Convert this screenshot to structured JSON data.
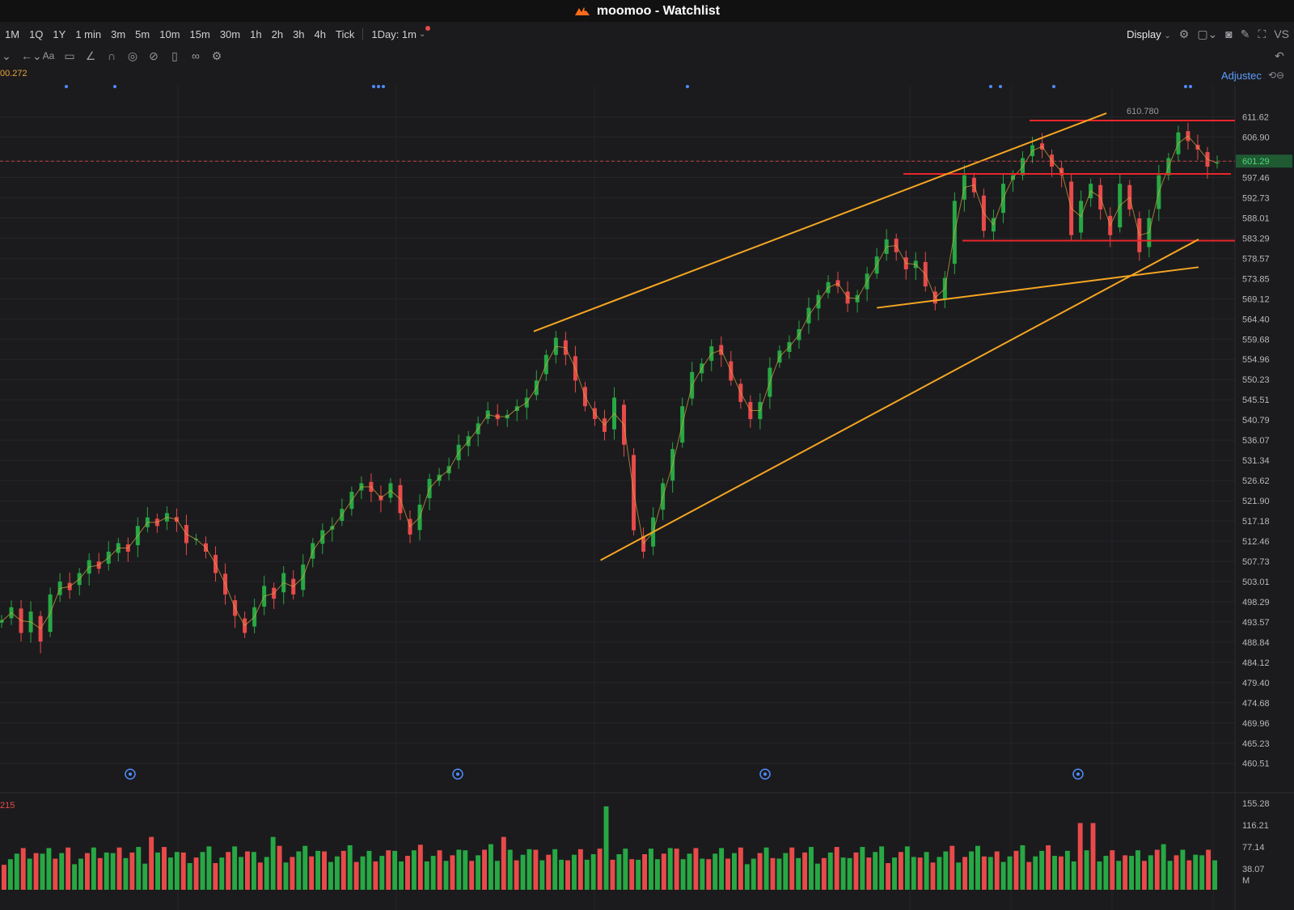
{
  "window": {
    "title": "moomoo - Watchlist"
  },
  "timeframes": [
    "1M",
    "1Q",
    "1Y",
    "1 min",
    "3m",
    "5m",
    "10m",
    "15m",
    "30m",
    "1h",
    "2h",
    "3h",
    "4h",
    "Tick"
  ],
  "active_timeframe": "1Day: 1m",
  "toolbar": {
    "display_label": "Display",
    "vs_label": "VS"
  },
  "drawing_tools": [
    "back-arrow-icon",
    "font-icon",
    "comment-icon",
    "line-tool-icon",
    "magnet-icon",
    "eye-icon",
    "hide-icon",
    "trash-icon",
    "link-icon",
    "settings-icon"
  ],
  "chart_info": {
    "price_label": "00.272",
    "adjusted_label": "Adjustec",
    "volume_label": "215",
    "current_price": "601.29",
    "peak_annotation": "610.780"
  },
  "colors": {
    "up": "#27a844",
    "down": "#e84a4a",
    "trendline": "#f5a623",
    "level": "#e8262a",
    "ma": "#d4a843",
    "background": "#1b1b1d"
  },
  "chart_data": [
    {
      "type": "candlestick",
      "title": "",
      "y_axis_ticks": [
        611.62,
        606.9,
        601.29,
        597.46,
        592.73,
        588.01,
        583.29,
        578.57,
        573.85,
        569.12,
        564.4,
        559.68,
        554.96,
        550.23,
        545.51,
        540.79,
        536.07,
        531.34,
        526.62,
        521.9,
        517.18,
        512.46,
        507.73,
        503.01,
        498.29,
        493.57,
        488.84,
        484.12,
        479.4,
        474.68,
        469.96,
        465.23,
        460.51
      ],
      "ylim": [
        458,
        614
      ],
      "close_path": [
        494,
        497,
        491,
        496,
        489,
        500,
        503,
        501,
        505,
        508,
        506,
        510,
        512,
        510,
        516,
        518,
        516,
        519,
        517,
        512,
        513,
        510,
        505,
        500,
        495,
        491,
        497,
        502,
        499,
        505,
        500,
        507,
        512,
        515,
        516,
        520,
        524,
        526,
        524,
        522,
        526,
        519,
        514,
        521,
        527,
        528,
        530,
        535,
        537,
        540,
        543,
        541,
        542,
        544,
        546,
        550,
        556,
        560,
        556,
        550,
        544,
        541,
        538,
        546,
        535,
        515,
        510,
        518,
        526,
        534,
        544,
        552,
        554,
        558,
        556,
        550,
        545,
        541,
        545,
        553,
        557,
        559,
        562,
        567,
        570,
        573,
        572,
        568,
        570,
        575,
        579,
        583,
        580,
        576,
        578,
        572,
        568,
        574,
        592,
        598,
        594,
        585,
        588,
        596,
        598,
        602,
        605,
        604,
        600,
        598,
        584,
        592,
        596,
        590,
        584,
        596,
        590,
        580,
        588,
        598,
        602,
        608,
        606,
        604,
        600,
        601
      ],
      "horizontal_levels": [
        610.78,
        598.3,
        582.7
      ],
      "trendlines": [
        {
          "from": [
            0.423,
            561.5
          ],
          "to": [
            0.877,
            612.5
          ]
        },
        {
          "from": [
            0.476,
            508.0
          ],
          "to": [
            0.95,
            583.0
          ]
        },
        {
          "from": [
            0.695,
            567.0
          ],
          "to": [
            0.95,
            576.5
          ]
        }
      ],
      "annotations": [
        "610.780"
      ]
    },
    {
      "type": "bar",
      "title": "",
      "y_axis_ticks": [
        155.28,
        116.21,
        77.14,
        38.07
      ],
      "unit": "M",
      "ylim": [
        0,
        160
      ]
    }
  ]
}
